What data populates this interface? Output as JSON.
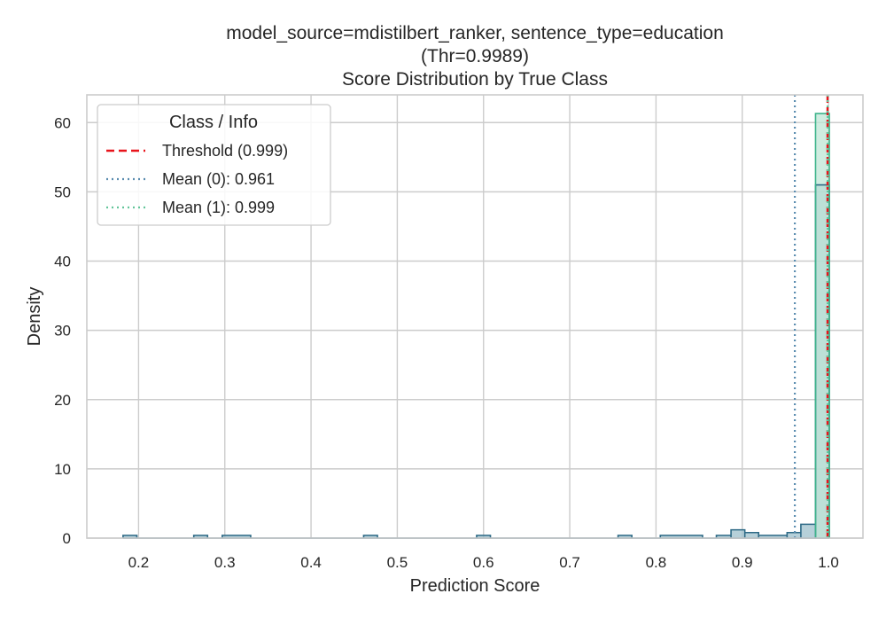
{
  "chart_data": {
    "type": "histogram",
    "title_lines": [
      "model_source=mdistilbert_ranker, sentence_type=education",
      "(Thr=0.9989)",
      "Score Distribution by True Class"
    ],
    "xlabel": "Prediction Score",
    "ylabel": "Density",
    "xlim": [
      0.14,
      1.04
    ],
    "ylim": [
      0,
      64
    ],
    "x_ticks": [
      0.2,
      0.3,
      0.4,
      0.5,
      0.6,
      0.7,
      0.8,
      0.9,
      1.0
    ],
    "x_tick_labels": [
      "0.2",
      "0.3",
      "0.4",
      "0.5",
      "0.6",
      "0.7",
      "0.8",
      "0.9",
      "1.0"
    ],
    "y_ticks": [
      0,
      10,
      20,
      30,
      40,
      50,
      60
    ],
    "y_tick_labels": [
      "0",
      "10",
      "20",
      "30",
      "40",
      "50",
      "60"
    ],
    "grid": true,
    "bin_edges": [
      0.182,
      0.198,
      0.264,
      0.28,
      0.297,
      0.33,
      0.461,
      0.477,
      0.592,
      0.608,
      0.756,
      0.772,
      0.805,
      0.854,
      0.87,
      0.887,
      0.903,
      0.919,
      0.952,
      0.968,
      0.985,
      1.001
    ],
    "series": [
      {
        "class": "0",
        "color": "#2e6a86",
        "fill": "#9ec0cc",
        "bins": [
          {
            "x0": 0.182,
            "x1": 0.198,
            "density": 0.4
          },
          {
            "x0": 0.264,
            "x1": 0.28,
            "density": 0.4
          },
          {
            "x0": 0.297,
            "x1": 0.33,
            "density": 0.4
          },
          {
            "x0": 0.461,
            "x1": 0.477,
            "density": 0.4
          },
          {
            "x0": 0.592,
            "x1": 0.608,
            "density": 0.4
          },
          {
            "x0": 0.756,
            "x1": 0.772,
            "density": 0.4
          },
          {
            "x0": 0.805,
            "x1": 0.854,
            "density": 0.4
          },
          {
            "x0": 0.87,
            "x1": 0.887,
            "density": 0.4
          },
          {
            "x0": 0.887,
            "x1": 0.903,
            "density": 1.2
          },
          {
            "x0": 0.903,
            "x1": 0.919,
            "density": 0.8
          },
          {
            "x0": 0.919,
            "x1": 0.952,
            "density": 0.4
          },
          {
            "x0": 0.952,
            "x1": 0.968,
            "density": 0.8
          },
          {
            "x0": 0.968,
            "x1": 0.985,
            "density": 2.0
          },
          {
            "x0": 0.985,
            "x1": 1.001,
            "density": 51.0
          }
        ]
      },
      {
        "class": "1",
        "color": "#3db38a",
        "fill": "#bfe6d6",
        "bins": [
          {
            "x0": 0.985,
            "x1": 1.001,
            "density": 61.3
          }
        ]
      }
    ],
    "vlines": [
      {
        "label": "Threshold (0.999)",
        "x": 0.9989,
        "style": "dashed",
        "color": "#e8141b"
      },
      {
        "label": "Mean (0): 0.961",
        "x": 0.961,
        "style": "dotted",
        "color": "#5b8db0"
      },
      {
        "label": "Mean (1): 0.999",
        "x": 0.999,
        "style": "dotted",
        "color": "#63c59a"
      }
    ],
    "legend": {
      "title": "Class / Info",
      "position": "upper-left",
      "entries": [
        "Threshold (0.999)",
        "Mean (0): 0.961",
        "Mean (1): 0.999"
      ]
    }
  }
}
